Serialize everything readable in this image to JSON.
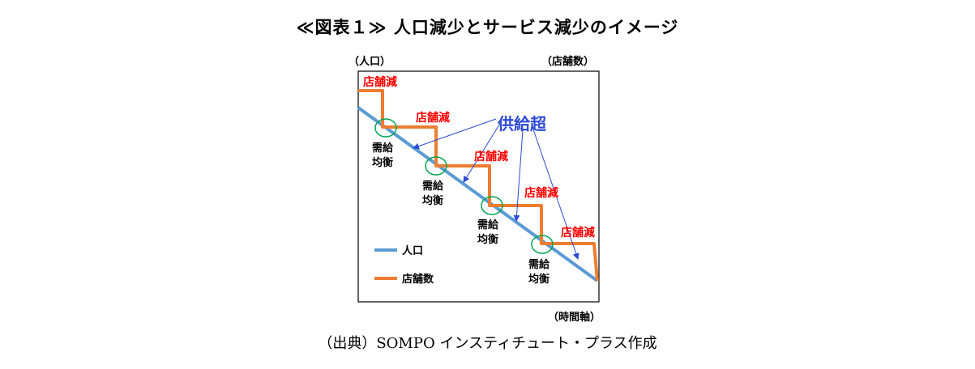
{
  "title": "≪図表１≫ 人口減少とサービス減少のイメージ",
  "y_label_left": "（人口）",
  "y_label_right": "（店舗数）",
  "x_label": "（時間軸）",
  "source": "（出典）SOMPO インスティチュート・プラス作成",
  "store_decrease_label": "店舗減",
  "oversupply_label": "供給超",
  "equilibrium_label_line1": "需給",
  "equilibrium_label_line2": "均衡",
  "legend": {
    "population": "人口",
    "stores": "店舗数"
  },
  "colors": {
    "population": "#5b9bd5",
    "stores": "#ed7d31",
    "red": "#ff0000",
    "blue": "#2e4bd6",
    "circle": "#00a650"
  }
}
